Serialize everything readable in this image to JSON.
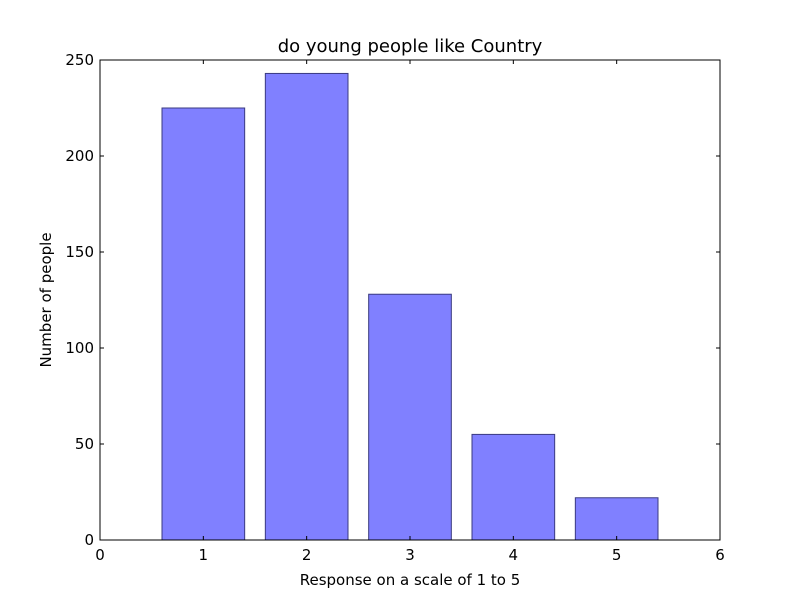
{
  "chart_data": {
    "type": "bar",
    "title": "do young people like Country",
    "xlabel": "Response on a scale of 1 to 5",
    "ylabel": "Number of people",
    "categories": [
      1,
      2,
      3,
      4,
      5
    ],
    "values": [
      225,
      243,
      128,
      55,
      22
    ],
    "xlim": [
      0,
      6
    ],
    "ylim": [
      0,
      250
    ],
    "xticks": [
      0,
      1,
      2,
      3,
      4,
      5,
      6
    ],
    "yticks": [
      0,
      50,
      100,
      150,
      200,
      250
    ],
    "bar_width": 0.8,
    "grid": false,
    "bar_color": "#8080ff",
    "bar_edge_color": "#3a3a80"
  }
}
